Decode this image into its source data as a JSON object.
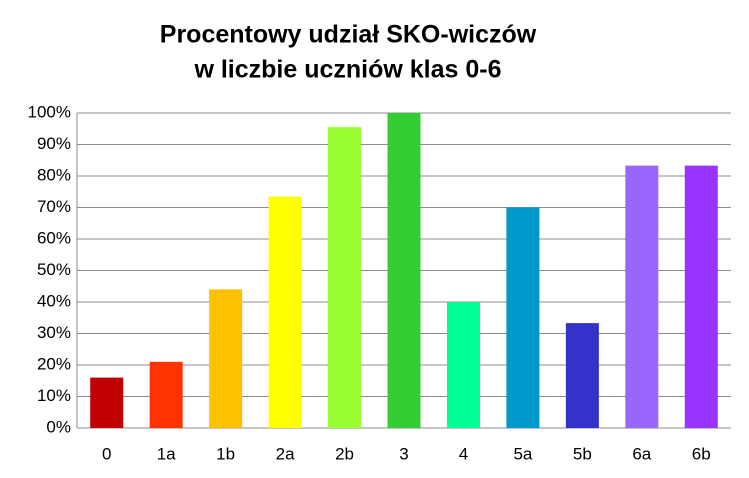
{
  "chart_data": {
    "type": "bar",
    "title": [
      "Procentowy udział SKO-wiczów",
      "w liczbie uczniów klas 0-6"
    ],
    "categories": [
      "0",
      "1a",
      "1b",
      "2a",
      "2b",
      "3",
      "4",
      "5a",
      "5b",
      "6a",
      "6b"
    ],
    "values": [
      16,
      21,
      44,
      73.5,
      95.5,
      100,
      40,
      70,
      33.3,
      83.3,
      83.3
    ],
    "colors": [
      "#c00000",
      "#ff3300",
      "#ffc000",
      "#ffff00",
      "#99ff33",
      "#33cc33",
      "#00ff99",
      "#0099cc",
      "#3333cc",
      "#9966ff",
      "#9933ff"
    ],
    "ylim": [
      0,
      100
    ],
    "yticks": [
      {
        "value": 0,
        "label": "0%"
      },
      {
        "value": 10,
        "label": "10%"
      },
      {
        "value": 20,
        "label": "20%"
      },
      {
        "value": 30,
        "label": "30%"
      },
      {
        "value": 40,
        "label": "40%"
      },
      {
        "value": 50,
        "label": "50%"
      },
      {
        "value": 60,
        "label": "60%"
      },
      {
        "value": 70,
        "label": "70%"
      },
      {
        "value": 80,
        "label": "80%"
      },
      {
        "value": 90,
        "label": "90%"
      },
      {
        "value": 100,
        "label": "100%"
      }
    ],
    "grid": true
  }
}
